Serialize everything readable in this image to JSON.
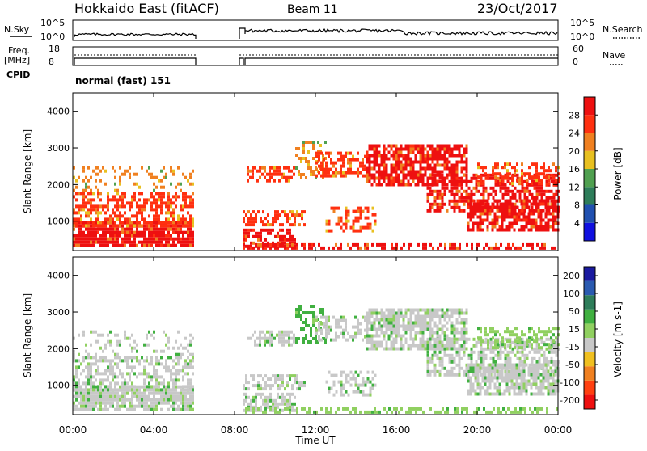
{
  "header": {
    "site": "Hokkaido East (fitACF)",
    "beam": "Beam 11",
    "date": "23/Oct/2017"
  },
  "status_panels": {
    "nsky_label": "N.Sky",
    "nsky_ticks": [
      "10^5",
      "10^0"
    ],
    "nsearch_label": "N.Search",
    "nsearch_ticks": [
      "10^5",
      "10^0"
    ],
    "freq_label_1": "Freq.",
    "freq_label_2": "[MHz]",
    "freq_ticks": [
      "18",
      "8"
    ],
    "nave_label": "Nave",
    "nave_ticks": [
      "60",
      "0"
    ],
    "cpid_label": "CPID",
    "cpid_value": "normal (fast) 151"
  },
  "chart_data": [
    {
      "type": "heatmap",
      "panel": "power",
      "ylabel": "Slant Range [km]",
      "yticks": [
        1000,
        2000,
        3000,
        4000
      ],
      "ylim": [
        200,
        4500
      ],
      "colorbar_label": "Power [dB]",
      "colorbar_ticks": [
        4,
        8,
        12,
        16,
        20,
        24,
        28
      ],
      "colorbar_range": [
        0,
        32
      ],
      "colors": [
        "#1010e0",
        "#2050b0",
        "#2e7d5a",
        "#50a050",
        "#e8c020",
        "#f08020",
        "#ff3010",
        "#ee1010"
      ]
    },
    {
      "type": "heatmap",
      "panel": "velocity",
      "ylabel": "Slant Range [km]",
      "yticks": [
        1000,
        2000,
        3000,
        4000
      ],
      "ylim": [
        200,
        4500
      ],
      "colorbar_label": "Velocity [m s-1]",
      "colorbar_ticks": [
        "200",
        "100",
        "50",
        "15",
        "-15",
        "-50",
        "-100",
        "-200"
      ],
      "colors": [
        "#1a1aa0",
        "#2a5ab0",
        "#2e7d5a",
        "#40b040",
        "#90d060",
        "#c8c8c8",
        "#f0c020",
        "#f08020",
        "#ff4010",
        "#ee1010"
      ]
    }
  ],
  "xaxis": {
    "label": "Time UT",
    "ticks": [
      "00:00",
      "04:00",
      "08:00",
      "12:00",
      "16:00",
      "20:00",
      "00:00"
    ]
  }
}
